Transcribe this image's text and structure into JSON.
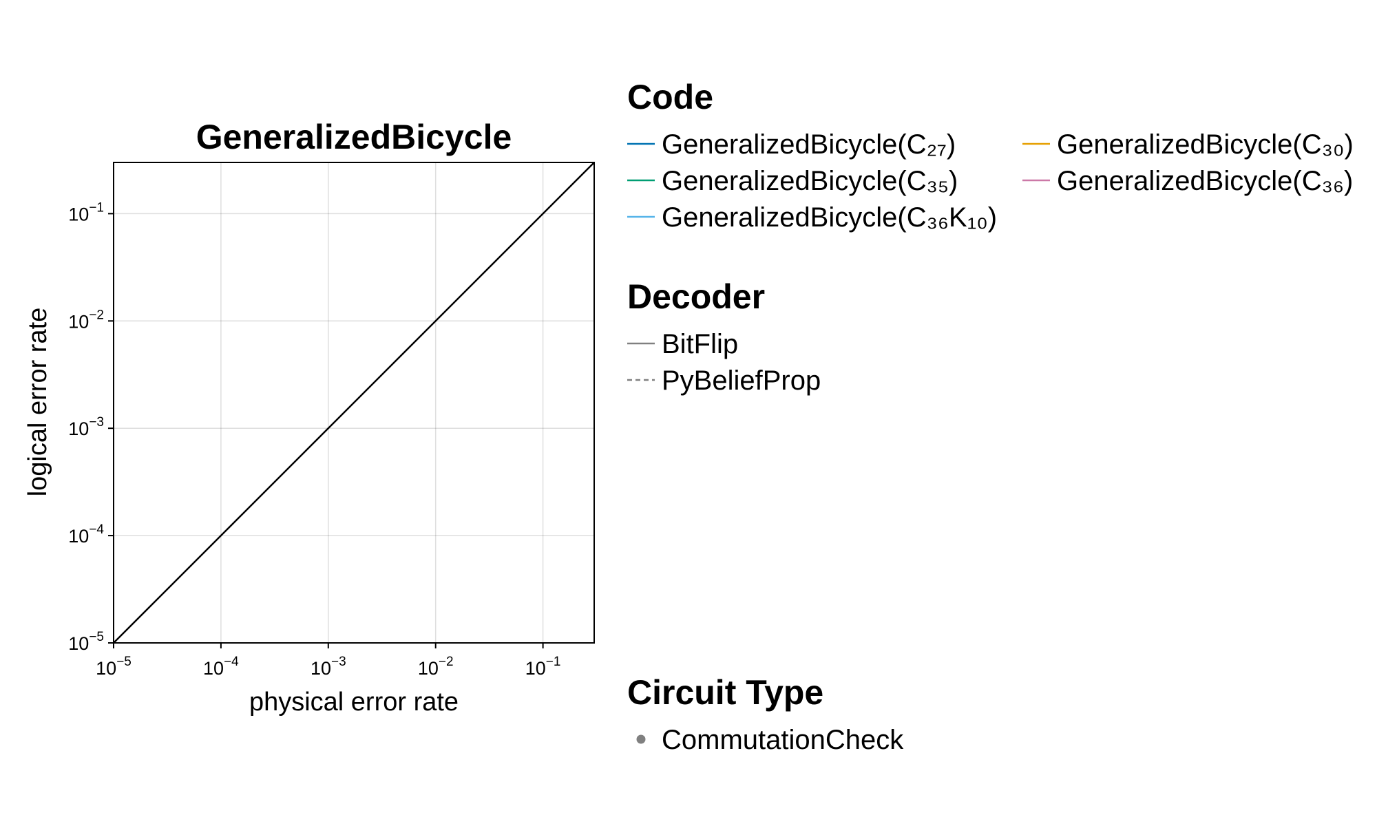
{
  "chart_data": {
    "type": "line",
    "title": "GeneralizedBicycle",
    "xlabel": "physical error rate",
    "ylabel": "logical error rate",
    "xscale": "log",
    "yscale": "log",
    "xlim": [
      1e-05,
      0.3
    ],
    "ylim": [
      1e-05,
      0.3
    ],
    "grid": true,
    "x_ticks": [
      {
        "base": "10",
        "exp": "−5"
      },
      {
        "base": "10",
        "exp": "−4"
      },
      {
        "base": "10",
        "exp": "−3"
      },
      {
        "base": "10",
        "exp": "−2"
      },
      {
        "base": "10",
        "exp": "−1"
      }
    ],
    "y_ticks": [
      {
        "base": "10",
        "exp": "−5"
      },
      {
        "base": "10",
        "exp": "−4"
      },
      {
        "base": "10",
        "exp": "−3"
      },
      {
        "base": "10",
        "exp": "−2"
      },
      {
        "base": "10",
        "exp": "−1"
      }
    ],
    "reference_line": {
      "x": [
        1e-05,
        0.3
      ],
      "y": [
        1e-05,
        0.3
      ],
      "color": "#000000"
    },
    "series": [],
    "legend_placement": "right",
    "legends": [
      {
        "title": "Code",
        "columns": 2,
        "items": [
          {
            "label": "GeneralizedBicycle(C₂₇)",
            "color": "#0072b2",
            "style": "solid"
          },
          {
            "label": "GeneralizedBicycle(C₃₀)",
            "color": "#e69f00",
            "style": "solid"
          },
          {
            "label": "GeneralizedBicycle(C₃₅)",
            "color": "#009e73",
            "style": "solid"
          },
          {
            "label": "GeneralizedBicycle(C₃₆)",
            "color": "#cc79a7",
            "style": "solid"
          },
          {
            "label": "GeneralizedBicycle(C₃₆K₁₀)",
            "color": "#56b4e9",
            "style": "solid"
          }
        ]
      },
      {
        "title": "Decoder",
        "columns": 1,
        "items": [
          {
            "label": "BitFlip",
            "color": "#808080",
            "style": "solid"
          },
          {
            "label": "PyBeliefProp",
            "color": "#808080",
            "style": "dashed"
          }
        ]
      },
      {
        "title": "Circuit Type",
        "columns": 1,
        "items": [
          {
            "label": "CommutationCheck",
            "color": "#808080",
            "style": "marker"
          }
        ]
      }
    ]
  }
}
